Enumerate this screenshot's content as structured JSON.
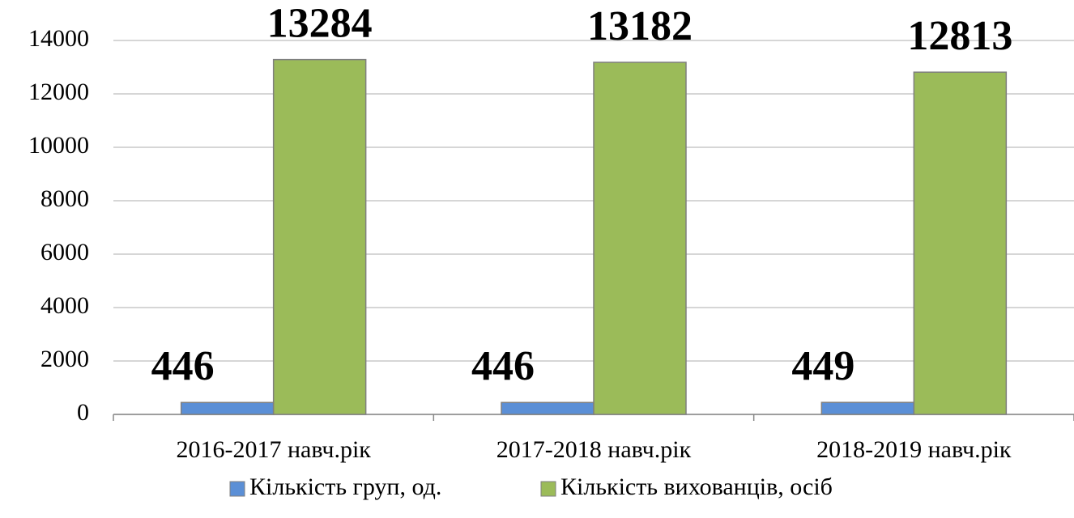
{
  "chart_data": {
    "type": "bar",
    "categories": [
      "2016-2017 навч.рік",
      "2017-2018 навч.рік",
      "2018-2019 навч.рік"
    ],
    "series": [
      {
        "name": "Кількість груп, од.",
        "color": "#5b8fd6",
        "values": [
          446,
          446,
          449
        ]
      },
      {
        "name": "Кількість вихованців, осіб",
        "color": "#9bbb59",
        "values": [
          13284,
          13182,
          12813
        ]
      }
    ],
    "ylim": [
      0,
      14000
    ],
    "yticks": [
      0,
      2000,
      4000,
      6000,
      8000,
      10000,
      12000,
      14000
    ],
    "grid": true,
    "legend": "bottom"
  }
}
